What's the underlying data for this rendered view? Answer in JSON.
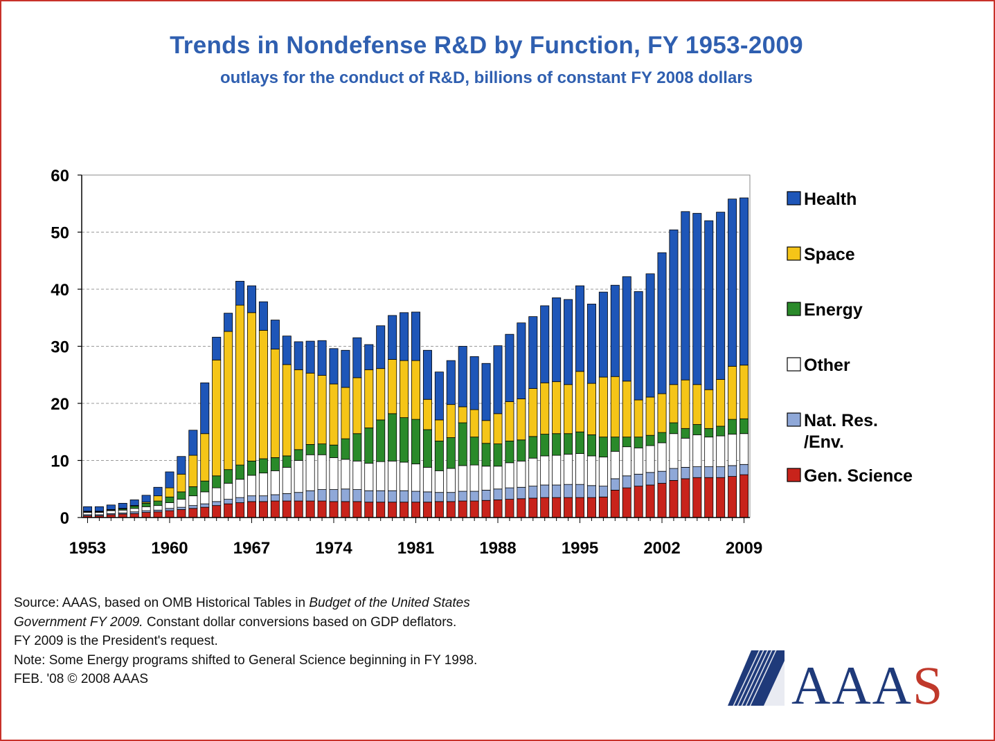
{
  "title": "Trends in Nondefense R&D by Function, FY 1953-2009",
  "subtitle": "outlays for the conduct of R&D, billions of constant FY 2008 dollars",
  "source_lines": [
    {
      "parts": [
        {
          "t": "Source: AAAS, based on OMB Historical Tables in ",
          "i": false
        },
        {
          "t": "Budget of the United States",
          "i": true
        }
      ]
    },
    {
      "parts": [
        {
          "t": "Government FY 2009.",
          "i": true
        },
        {
          "t": "  Constant dollar conversions based on  GDP deflators.",
          "i": false
        }
      ]
    },
    {
      "parts": [
        {
          "t": "FY 2009 is the President's request.",
          "i": false
        }
      ]
    },
    {
      "parts": [
        {
          "t": "Note: Some Energy programs shifted to General Science beginning in FY 1998.",
          "i": false
        }
      ]
    },
    {
      "parts": [
        {
          "t": "FEB. '08 © 2008 AAAS",
          "i": false
        }
      ]
    }
  ],
  "logo": {
    "text": "AAAS",
    "color_main": "#1f3a7a",
    "color_accent": "#c0392b"
  },
  "chart_data": {
    "type": "bar",
    "stacked": true,
    "xlabel": "",
    "ylabel": "",
    "ylim": [
      0,
      60
    ],
    "yticks": [
      0,
      10,
      20,
      30,
      40,
      50,
      60
    ],
    "xtick_labels": [
      "1953",
      "1960",
      "1967",
      "1974",
      "1981",
      "1988",
      "1995",
      "2002",
      "2009"
    ],
    "grid": "horizontal dashed",
    "legend_position": "right",
    "categories": [
      1953,
      1954,
      1955,
      1956,
      1957,
      1958,
      1959,
      1960,
      1961,
      1962,
      1963,
      1964,
      1965,
      1966,
      1967,
      1968,
      1969,
      1970,
      1971,
      1972,
      1973,
      1974,
      1975,
      1976,
      1977,
      1978,
      1979,
      1980,
      1981,
      1982,
      1983,
      1984,
      1985,
      1986,
      1987,
      1988,
      1989,
      1990,
      1991,
      1992,
      1993,
      1994,
      1995,
      1996,
      1997,
      1998,
      1999,
      2000,
      2001,
      2002,
      2003,
      2004,
      2005,
      2006,
      2007,
      2008,
      2009
    ],
    "series": [
      {
        "name": "Gen. Science",
        "color": "#c8231b",
        "values": [
          0.3,
          0.3,
          0.5,
          0.6,
          0.7,
          0.9,
          1.0,
          1.2,
          1.4,
          1.6,
          1.8,
          2.1,
          2.4,
          2.6,
          2.8,
          2.8,
          2.9,
          2.9,
          2.9,
          2.9,
          2.9,
          2.8,
          2.8,
          2.8,
          2.7,
          2.7,
          2.7,
          2.7,
          2.7,
          2.7,
          2.8,
          2.8,
          2.9,
          2.9,
          3.0,
          3.1,
          3.2,
          3.3,
          3.4,
          3.5,
          3.5,
          3.5,
          3.5,
          3.5,
          3.6,
          4.8,
          5.2,
          5.5,
          5.7,
          6.0,
          6.5,
          6.8,
          7.0,
          7.0,
          7.0,
          7.2,
          7.5
        ]
      },
      {
        "name": "Nat. Res. /Env.",
        "color": "#8fa8d8",
        "values": [
          0.2,
          0.2,
          0.2,
          0.2,
          0.3,
          0.3,
          0.3,
          0.4,
          0.4,
          0.5,
          0.6,
          0.7,
          0.8,
          0.9,
          1.0,
          1.0,
          1.1,
          1.3,
          1.5,
          1.8,
          2.0,
          2.1,
          2.2,
          2.1,
          2.0,
          2.0,
          2.0,
          2.0,
          1.9,
          1.8,
          1.6,
          1.6,
          1.7,
          1.7,
          1.8,
          1.9,
          2.0,
          2.0,
          2.1,
          2.2,
          2.2,
          2.3,
          2.3,
          2.1,
          1.9,
          2.0,
          2.1,
          2.1,
          2.2,
          2.1,
          2.1,
          2.0,
          1.9,
          1.9,
          1.9,
          1.9,
          1.8
        ]
      },
      {
        "name": "Other",
        "color": "#ffffff",
        "values": [
          0.4,
          0.4,
          0.5,
          0.5,
          0.6,
          0.7,
          0.8,
          1.0,
          1.4,
          1.7,
          2.1,
          2.4,
          2.8,
          3.2,
          3.6,
          4.0,
          4.2,
          4.6,
          5.6,
          6.3,
          6.1,
          5.6,
          5.2,
          5.0,
          4.8,
          5.1,
          5.2,
          5.0,
          4.8,
          4.3,
          3.8,
          4.2,
          4.5,
          4.6,
          4.2,
          4.0,
          4.4,
          4.6,
          4.9,
          5.1,
          5.2,
          5.3,
          5.4,
          5.2,
          5.1,
          4.8,
          5.1,
          4.6,
          4.7,
          5.0,
          6.1,
          5.1,
          5.6,
          5.2,
          5.4,
          5.5,
          5.4
        ]
      },
      {
        "name": "Energy",
        "color": "#2a8a2a",
        "values": [
          0.1,
          0.1,
          0.1,
          0.2,
          0.4,
          0.6,
          0.8,
          1.0,
          1.3,
          1.6,
          1.9,
          2.1,
          2.4,
          2.5,
          2.5,
          2.5,
          2.3,
          2.0,
          1.9,
          1.8,
          1.9,
          2.2,
          3.6,
          4.8,
          6.2,
          7.3,
          8.3,
          7.8,
          7.8,
          6.6,
          5.2,
          5.4,
          7.5,
          4.9,
          4.0,
          3.9,
          3.8,
          3.7,
          3.8,
          3.8,
          3.8,
          3.6,
          3.8,
          3.7,
          3.5,
          2.5,
          1.7,
          1.9,
          1.8,
          1.8,
          1.9,
          1.7,
          1.8,
          1.5,
          1.7,
          2.6,
          2.6
        ]
      },
      {
        "name": "Space",
        "color": "#f5c518",
        "values": [
          0.1,
          0.1,
          0.1,
          0.1,
          0.1,
          0.2,
          0.9,
          1.6,
          3.1,
          5.5,
          8.3,
          20.3,
          24.2,
          28.0,
          26.0,
          22.5,
          19.0,
          16.0,
          14.0,
          12.5,
          12.0,
          10.7,
          9.0,
          9.8,
          10.2,
          9.0,
          9.5,
          10.0,
          10.3,
          5.3,
          3.7,
          5.8,
          2.8,
          4.8,
          4.0,
          5.3,
          6.9,
          7.2,
          8.4,
          9.0,
          9.1,
          8.6,
          10.6,
          9.0,
          10.5,
          10.6,
          9.8,
          6.5,
          6.7,
          6.8,
          6.7,
          8.5,
          7.0,
          6.8,
          8.2,
          9.3,
          9.4
        ]
      },
      {
        "name": "Health",
        "color": "#1e56b8",
        "values": [
          0.8,
          0.8,
          0.8,
          0.9,
          1.0,
          1.2,
          1.5,
          2.8,
          3.1,
          4.4,
          8.9,
          4.0,
          3.2,
          4.2,
          4.7,
          5.0,
          5.1,
          5.0,
          4.9,
          5.6,
          6.1,
          6.2,
          6.5,
          7.0,
          4.4,
          7.5,
          7.7,
          8.4,
          8.5,
          8.6,
          8.4,
          7.7,
          10.6,
          9.3,
          10.0,
          11.9,
          11.8,
          13.3,
          12.6,
          13.5,
          14.7,
          14.9,
          15.0,
          13.9,
          14.9,
          16.0,
          18.3,
          19.0,
          21.6,
          24.7,
          27.1,
          29.5,
          30.0,
          29.6,
          29.3,
          29.3,
          29.3
        ]
      }
    ],
    "legend": [
      {
        "name": "Health",
        "color": "#1e56b8"
      },
      {
        "name": "Space",
        "color": "#f5c518"
      },
      {
        "name": "Energy",
        "color": "#2a8a2a"
      },
      {
        "name": "Other",
        "color": "#ffffff"
      },
      {
        "name": "Nat. Res. /Env.",
        "color": "#8fa8d8"
      },
      {
        "name": "Gen. Science",
        "color": "#c8231b"
      }
    ]
  }
}
